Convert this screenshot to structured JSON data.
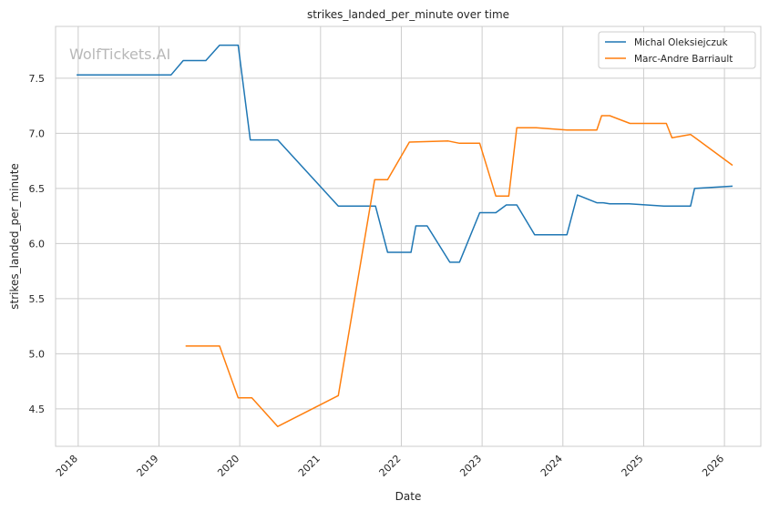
{
  "chart_data": {
    "type": "line",
    "title": "strikes_landed_per_minute over time",
    "xlabel": "Date",
    "ylabel": "strikes_landed_per_minute",
    "watermark": "WolfTickets.AI",
    "xlim": [
      2017.72,
      2026.45
    ],
    "ylim": [
      4.16,
      7.97
    ],
    "x_ticks": [
      {
        "value": 2018,
        "label": "2018"
      },
      {
        "value": 2019,
        "label": "2019"
      },
      {
        "value": 2020,
        "label": "2020"
      },
      {
        "value": 2021,
        "label": "2021"
      },
      {
        "value": 2022,
        "label": "2022"
      },
      {
        "value": 2023,
        "label": "2023"
      },
      {
        "value": 2024,
        "label": "2024"
      },
      {
        "value": 2025,
        "label": "2025"
      },
      {
        "value": 2026,
        "label": "2026"
      }
    ],
    "y_ticks": [
      {
        "value": 4.5,
        "label": "4.5"
      },
      {
        "value": 5.0,
        "label": "5.0"
      },
      {
        "value": 5.5,
        "label": "5.5"
      },
      {
        "value": 6.0,
        "label": "6.0"
      },
      {
        "value": 6.5,
        "label": "6.5"
      },
      {
        "value": 7.0,
        "label": "7.0"
      },
      {
        "value": 7.5,
        "label": "7.5"
      }
    ],
    "grid": true,
    "legend_position": "top-right",
    "series": [
      {
        "name": "Michal Oleksiejczuk",
        "color": "#1f77b4",
        "points": [
          [
            2017.98,
            7.53
          ],
          [
            2019.15,
            7.53
          ],
          [
            2019.3,
            7.66
          ],
          [
            2019.58,
            7.66
          ],
          [
            2019.75,
            7.8
          ],
          [
            2019.98,
            7.8
          ],
          [
            2020.13,
            6.94
          ],
          [
            2020.47,
            6.94
          ],
          [
            2021.22,
            6.34
          ],
          [
            2021.68,
            6.34
          ],
          [
            2021.83,
            5.92
          ],
          [
            2022.12,
            5.92
          ],
          [
            2022.18,
            6.16
          ],
          [
            2022.32,
            6.16
          ],
          [
            2022.6,
            5.83
          ],
          [
            2022.72,
            5.83
          ],
          [
            2022.97,
            6.28
          ],
          [
            2023.17,
            6.28
          ],
          [
            2023.3,
            6.35
          ],
          [
            2023.43,
            6.35
          ],
          [
            2023.65,
            6.08
          ],
          [
            2024.05,
            6.08
          ],
          [
            2024.18,
            6.44
          ],
          [
            2024.42,
            6.37
          ],
          [
            2024.5,
            6.37
          ],
          [
            2024.58,
            6.36
          ],
          [
            2024.82,
            6.36
          ],
          [
            2025.25,
            6.34
          ],
          [
            2025.58,
            6.34
          ],
          [
            2025.63,
            6.5
          ],
          [
            2026.1,
            6.52
          ]
        ]
      },
      {
        "name": "Marc-Andre Barriault",
        "color": "#ff7f0e",
        "points": [
          [
            2019.33,
            5.07
          ],
          [
            2019.75,
            5.07
          ],
          [
            2019.98,
            4.6
          ],
          [
            2020.15,
            4.6
          ],
          [
            2020.47,
            4.34
          ],
          [
            2021.22,
            4.62
          ],
          [
            2021.67,
            6.58
          ],
          [
            2021.83,
            6.58
          ],
          [
            2022.1,
            6.92
          ],
          [
            2022.58,
            6.93
          ],
          [
            2022.72,
            6.91
          ],
          [
            2022.97,
            6.91
          ],
          [
            2023.17,
            6.43
          ],
          [
            2023.33,
            6.43
          ],
          [
            2023.43,
            7.05
          ],
          [
            2023.67,
            7.05
          ],
          [
            2024.05,
            7.03
          ],
          [
            2024.42,
            7.03
          ],
          [
            2024.48,
            7.16
          ],
          [
            2024.58,
            7.16
          ],
          [
            2024.83,
            7.09
          ],
          [
            2025.28,
            7.09
          ],
          [
            2025.35,
            6.96
          ],
          [
            2025.58,
            6.99
          ],
          [
            2026.1,
            6.71
          ]
        ]
      }
    ]
  }
}
